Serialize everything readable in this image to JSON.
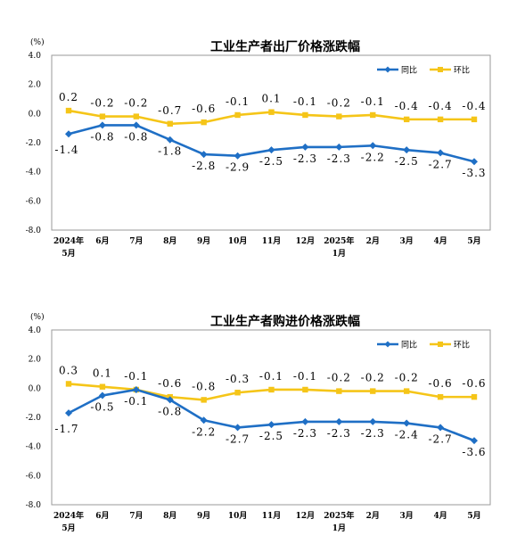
{
  "chart_data": [
    {
      "type": "line",
      "title": "工业生产者出厂价格涨跌幅",
      "ylabel": "(%)",
      "ylim": [
        -8.0,
        4.0
      ],
      "yticks": [
        "4.0",
        "2.0",
        "0.0",
        "-2.0",
        "-4.0",
        "-6.0",
        "-8.0"
      ],
      "categories": [
        {
          "line1": "2024年",
          "line2": "5月"
        },
        {
          "line1": "6月",
          "line2": ""
        },
        {
          "line1": "7月",
          "line2": ""
        },
        {
          "line1": "8月",
          "line2": ""
        },
        {
          "line1": "9月",
          "line2": ""
        },
        {
          "line1": "10月",
          "line2": ""
        },
        {
          "line1": "11月",
          "line2": ""
        },
        {
          "line1": "12月",
          "line2": ""
        },
        {
          "line1": "2025年",
          "line2": "1月"
        },
        {
          "line1": "2月",
          "line2": ""
        },
        {
          "line1": "3月",
          "line2": ""
        },
        {
          "line1": "4月",
          "line2": ""
        },
        {
          "line1": "5月",
          "line2": ""
        }
      ],
      "grid": false,
      "legend": "top-right",
      "series": [
        {
          "name": "同比",
          "color": "#1f6fc5",
          "marker": "diamond",
          "values": [
            -1.4,
            -0.8,
            -0.8,
            -1.8,
            -2.8,
            -2.9,
            -2.5,
            -2.3,
            -2.3,
            -2.2,
            -2.5,
            -2.7,
            -3.3
          ],
          "labels": [
            "-1.4",
            "-0.8",
            "-0.8",
            "-1.8",
            "-2.8",
            "-2.9",
            "-2.5",
            "-2.3",
            "-2.3",
            "-2.2",
            "-2.5",
            "-2.7",
            "-3.3"
          ]
        },
        {
          "name": "环比",
          "color": "#f5c518",
          "marker": "square",
          "values": [
            0.2,
            -0.2,
            -0.2,
            -0.7,
            -0.6,
            -0.1,
            0.1,
            -0.1,
            -0.2,
            -0.1,
            -0.4,
            -0.4,
            -0.4
          ],
          "labels": [
            "0.2",
            "-0.2",
            "-0.2",
            "-0.7",
            "-0.6",
            "-0.1",
            "0.1",
            "-0.1",
            "-0.2",
            "-0.1",
            "-0.4",
            "-0.4",
            "-0.4"
          ]
        }
      ]
    },
    {
      "type": "line",
      "title": "工业生产者购进价格涨跌幅",
      "ylabel": "(%)",
      "ylim": [
        -8.0,
        4.0
      ],
      "yticks": [
        "4.0",
        "2.0",
        "0.0",
        "-2.0",
        "-4.0",
        "-6.0",
        "-8.0"
      ],
      "categories": [
        {
          "line1": "2024年",
          "line2": "5月"
        },
        {
          "line1": "6月",
          "line2": ""
        },
        {
          "line1": "7月",
          "line2": ""
        },
        {
          "line1": "8月",
          "line2": ""
        },
        {
          "line1": "9月",
          "line2": ""
        },
        {
          "line1": "10月",
          "line2": ""
        },
        {
          "line1": "11月",
          "line2": ""
        },
        {
          "line1": "12月",
          "line2": ""
        },
        {
          "line1": "2025年",
          "line2": "1月"
        },
        {
          "line1": "2月",
          "line2": ""
        },
        {
          "line1": "3月",
          "line2": ""
        },
        {
          "line1": "4月",
          "line2": ""
        },
        {
          "line1": "5月",
          "line2": ""
        }
      ],
      "grid": false,
      "legend": "top-right",
      "series": [
        {
          "name": "同比",
          "color": "#1f6fc5",
          "marker": "diamond",
          "values": [
            -1.7,
            -0.5,
            -0.1,
            -0.8,
            -2.2,
            -2.7,
            -2.5,
            -2.3,
            -2.3,
            -2.3,
            -2.4,
            -2.7,
            -3.6
          ],
          "labels": [
            "-1.7",
            "-0.5",
            "-0.1",
            "-0.8",
            "-2.2",
            "-2.7",
            "-2.5",
            "-2.3",
            "-2.3",
            "-2.3",
            "-2.4",
            "-2.7",
            "-3.6"
          ]
        },
        {
          "name": "环比",
          "color": "#f5c518",
          "marker": "square",
          "values": [
            0.3,
            0.1,
            -0.1,
            -0.6,
            -0.8,
            -0.3,
            -0.1,
            -0.1,
            -0.2,
            -0.2,
            -0.2,
            -0.6,
            -0.6
          ],
          "labels": [
            "0.3",
            "0.1",
            "-0.1",
            "-0.6",
            "-0.8",
            "-0.3",
            "-0.1",
            "-0.1",
            "-0.2",
            "-0.2",
            "-0.2",
            "-0.6",
            "-0.6"
          ]
        }
      ]
    }
  ]
}
